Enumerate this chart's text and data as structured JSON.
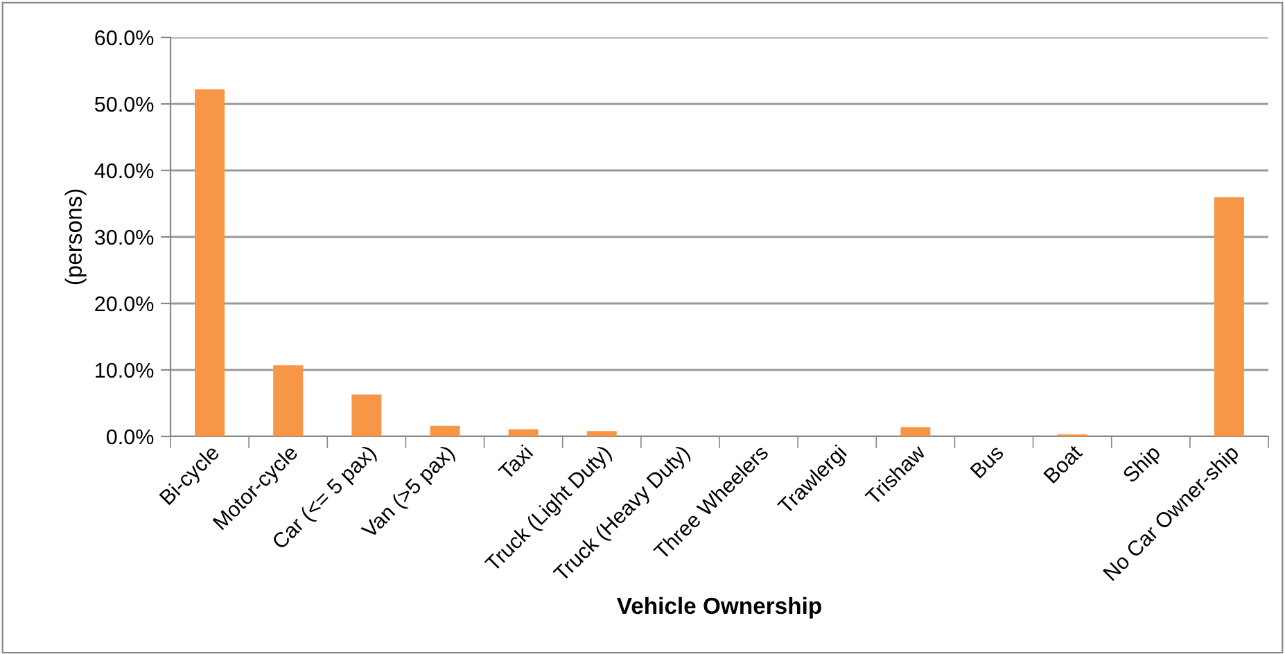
{
  "chart_data": {
    "type": "bar",
    "xlabel": "Vehicle Ownership",
    "ylabel": "(persons)",
    "categories": [
      "Bi-cycle",
      "Motor-cycle",
      "Car (<= 5 pax)",
      "Van (>5 pax)",
      "Taxi",
      "Truck (Light Duty)",
      "Truck (Heavy Duty)",
      "Three Wheelers",
      "Trawlergi",
      "Trishaw",
      "Bus",
      "Boat",
      "Ship",
      "No Car Owner-ship"
    ],
    "values": [
      52.2,
      10.7,
      6.3,
      1.6,
      1.1,
      0.8,
      0,
      0,
      0,
      1.4,
      0,
      0.3,
      0,
      36.0
    ],
    "color": "#f79646",
    "ylim": [
      0,
      60
    ],
    "yticks": [
      {
        "value": 0,
        "label": "0.0%"
      },
      {
        "value": 10,
        "label": "10.0%"
      },
      {
        "value": 20,
        "label": "20.0%"
      },
      {
        "value": 30,
        "label": "30.0%"
      },
      {
        "value": 40,
        "label": "40.0%"
      },
      {
        "value": 50,
        "label": "50.0%"
      },
      {
        "value": 60,
        "label": "60.0%"
      }
    ],
    "grid": "y",
    "legend": false
  }
}
